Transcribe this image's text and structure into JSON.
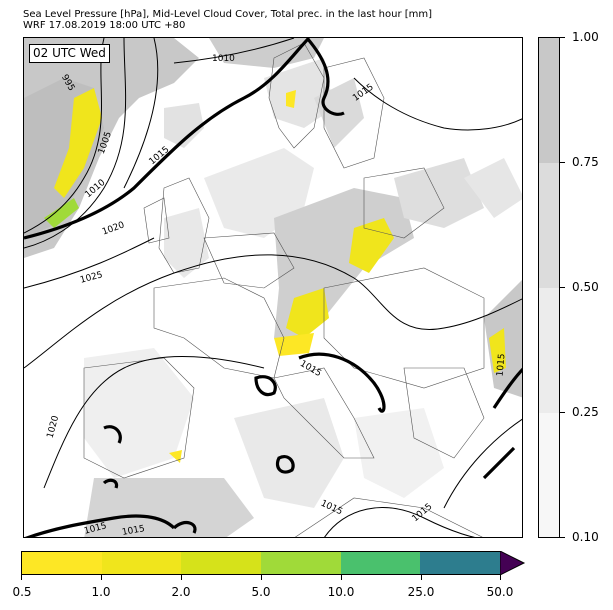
{
  "title": {
    "line1": "Sea Level Pressure [hPa], Mid-Level Cloud Cover, Total prec. in the last hour [mm]",
    "line2": "WRF 17.08.2019 18:00 UTC +80"
  },
  "time_badge": "02 UTC Wed",
  "isobar_labels": [
    "1010",
    "995",
    "1005",
    "1010",
    "1015",
    "1015",
    "1020",
    "1025",
    "1015",
    "1015",
    "1020",
    "1015",
    "1015",
    "1015",
    "1015"
  ],
  "cloud_colorbar": {
    "ticks": [
      "1.00",
      "0.75",
      "0.50",
      "0.25",
      "0.10"
    ],
    "colors": [
      "#c8c8c8",
      "#dcdcdc",
      "#ececec",
      "#f7f7f7"
    ]
  },
  "precip_colorbar": {
    "ticks": [
      "0.5",
      "1.0",
      "2.0",
      "5.0",
      "10.0",
      "25.0",
      "50.0"
    ],
    "colors": [
      "#fde725",
      "#f0e51c",
      "#d6e21a",
      "#a0da39",
      "#4ac16d",
      "#2d7d8e",
      "#3b528b"
    ],
    "over_color": "#440154"
  }
}
